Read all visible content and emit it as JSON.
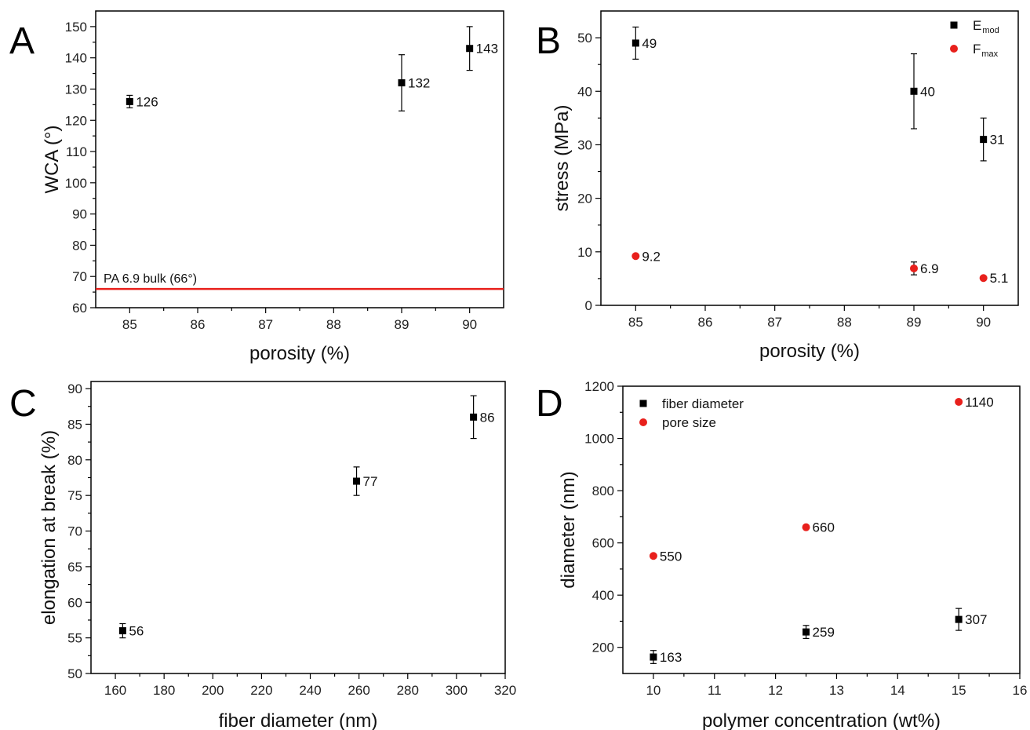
{
  "chart_data": [
    {
      "panel": "A",
      "type": "scatter",
      "xlabel": "porosity (%)",
      "ylabel": "WCA (°)",
      "xlim": [
        84.5,
        90.5
      ],
      "ylim": [
        60,
        155
      ],
      "xticks": [
        85,
        86,
        87,
        88,
        89,
        90
      ],
      "yticks": [
        60,
        70,
        80,
        90,
        100,
        110,
        120,
        130,
        140,
        150
      ],
      "series": [
        {
          "marker": "square",
          "color": "#000000",
          "points": [
            {
              "x": 85,
              "y": 126,
              "err": 2,
              "label": "126"
            },
            {
              "x": 89,
              "y": 132,
              "err": 9,
              "label": "132"
            },
            {
              "x": 90,
              "y": 143,
              "err": 7,
              "label": "143"
            }
          ]
        }
      ],
      "reference_line": {
        "y": 66,
        "color": "#e8201c",
        "label": "PA 6.9 bulk (66°)"
      }
    },
    {
      "panel": "B",
      "type": "scatter",
      "xlabel": "porosity (%)",
      "ylabel": "stress (MPa)",
      "xlim": [
        84.5,
        90.5
      ],
      "ylim": [
        0,
        55
      ],
      "xticks": [
        85,
        86,
        87,
        88,
        89,
        90
      ],
      "yticks": [
        0,
        10,
        20,
        30,
        40,
        50
      ],
      "legend_position": "top-right",
      "series": [
        {
          "name": "E",
          "name_sub": "mod",
          "marker": "square",
          "color": "#000000",
          "points": [
            {
              "x": 85,
              "y": 49,
              "err": 3,
              "label": "49"
            },
            {
              "x": 89,
              "y": 40,
              "err": 7,
              "label": "40"
            },
            {
              "x": 90,
              "y": 31,
              "err": 4,
              "label": "31"
            }
          ]
        },
        {
          "name": "F",
          "name_sub": "max",
          "marker": "circle",
          "color": "#e8201c",
          "points": [
            {
              "x": 85,
              "y": 9.2,
              "err": 0,
              "label": "9.2"
            },
            {
              "x": 89,
              "y": 6.9,
              "err": 1.2,
              "label": "6.9"
            },
            {
              "x": 90,
              "y": 5.1,
              "err": 0,
              "label": "5.1"
            }
          ]
        }
      ]
    },
    {
      "panel": "C",
      "type": "scatter",
      "xlabel": "fiber diameter (nm)",
      "ylabel": "elongation at break (%)",
      "xlim": [
        150,
        320
      ],
      "ylim": [
        50,
        91
      ],
      "xticks": [
        160,
        180,
        200,
        220,
        240,
        260,
        280,
        300,
        320
      ],
      "yticks": [
        50,
        55,
        60,
        65,
        70,
        75,
        80,
        85,
        90
      ],
      "series": [
        {
          "marker": "square",
          "color": "#000000",
          "points": [
            {
              "x": 163,
              "y": 56,
              "err": 1,
              "label": "56"
            },
            {
              "x": 259,
              "y": 77,
              "err": 2,
              "label": "77"
            },
            {
              "x": 307,
              "y": 86,
              "err": 3,
              "label": "86"
            }
          ]
        }
      ]
    },
    {
      "panel": "D",
      "type": "scatter",
      "xlabel": "polymer concentration (wt%)",
      "ylabel": "diameter (nm)",
      "xlim": [
        9.5,
        16
      ],
      "ylim": [
        100,
        1200
      ],
      "xticks": [
        10,
        11,
        12,
        13,
        14,
        15,
        16
      ],
      "yticks": [
        200,
        400,
        600,
        800,
        1000,
        1200
      ],
      "legend_position": "top-left",
      "series": [
        {
          "name": "fiber diameter",
          "marker": "square",
          "color": "#000000",
          "points": [
            {
              "x": 10,
              "y": 163,
              "err": 25,
              "label": "163"
            },
            {
              "x": 12.5,
              "y": 259,
              "err": 25,
              "label": "259"
            },
            {
              "x": 15,
              "y": 307,
              "err": 42,
              "label": "307"
            }
          ]
        },
        {
          "name": "pore size",
          "marker": "circle",
          "color": "#e8201c",
          "points": [
            {
              "x": 10,
              "y": 550,
              "err": 0,
              "label": "550"
            },
            {
              "x": 12.5,
              "y": 660,
              "err": 0,
              "label": "660"
            },
            {
              "x": 15,
              "y": 1140,
              "err": 0,
              "label": "1140"
            }
          ]
        }
      ]
    }
  ]
}
